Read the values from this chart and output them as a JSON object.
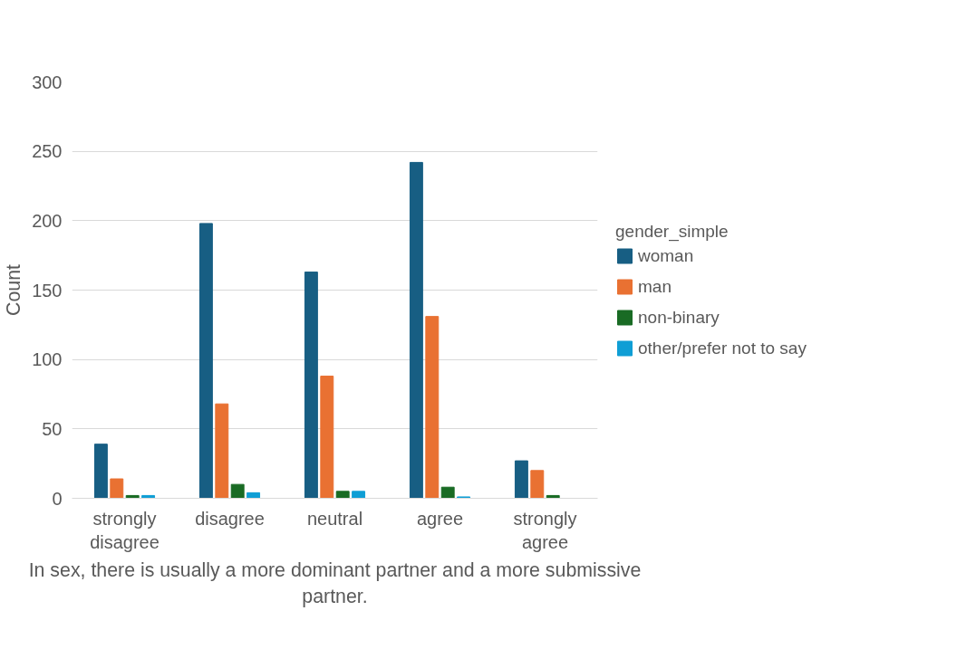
{
  "chart_data": {
    "type": "bar",
    "xlabel": "In sex, there is usually a more dominant partner and a more submissive partner.",
    "ylabel": "Count",
    "legend_title": "gender_simple",
    "categories": [
      "strongly disagree",
      "disagree",
      "neutral",
      "agree",
      "strongly agree"
    ],
    "series": [
      {
        "name": "woman",
        "color": "#175e83",
        "values": [
          39,
          198,
          163,
          242,
          27
        ]
      },
      {
        "name": "man",
        "color": "#e97132",
        "values": [
          14,
          68,
          88,
          131,
          20
        ]
      },
      {
        "name": "non-binary",
        "color": "#196b24",
        "values": [
          2,
          10,
          5,
          8,
          2
        ]
      },
      {
        "name": "other/prefer not to say",
        "color": "#0f9ed5",
        "values": [
          2,
          4,
          5,
          1,
          0
        ]
      }
    ],
    "ylim": [
      0,
      300
    ],
    "yticks": [
      0,
      50,
      100,
      150,
      200,
      250,
      300
    ],
    "grid": "y",
    "legend": "right"
  }
}
